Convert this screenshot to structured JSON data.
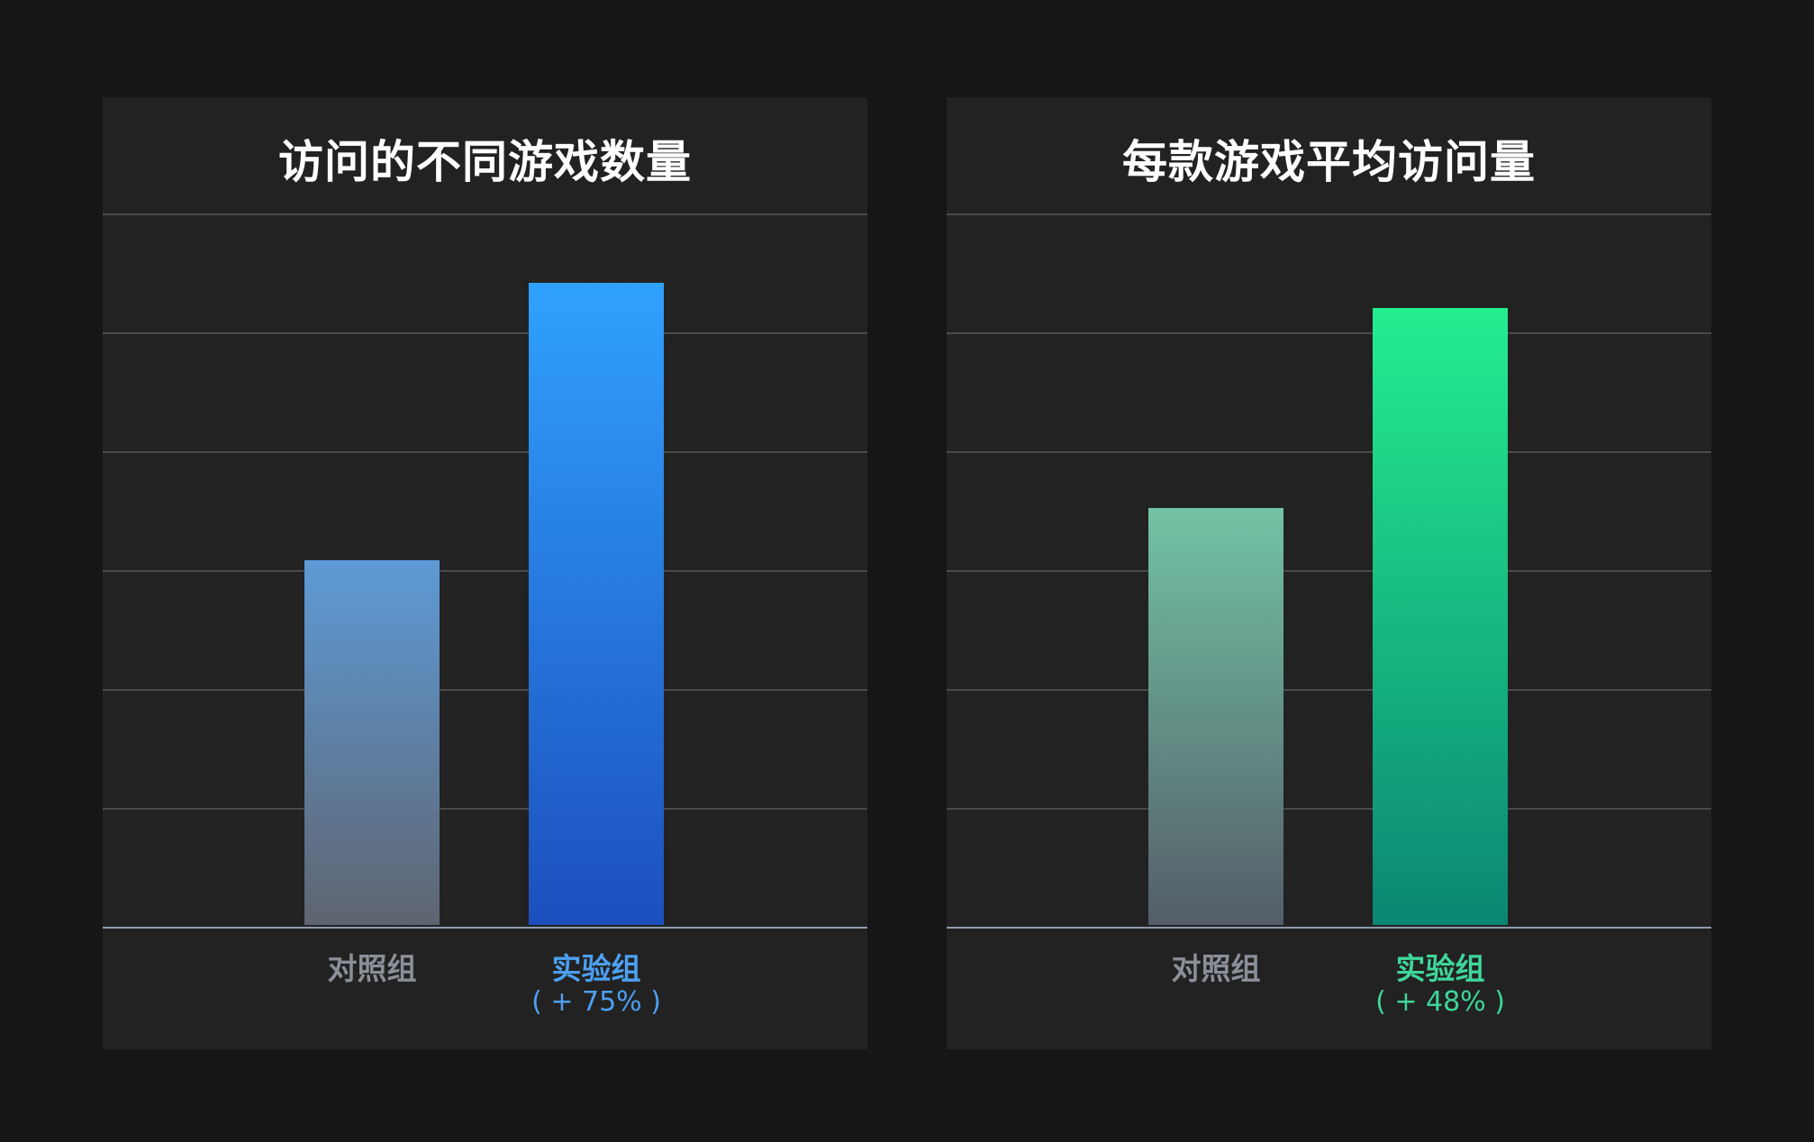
{
  "chart_data": [
    {
      "type": "bar",
      "title": "访问的不同游戏数量",
      "categories": [
        "对照组",
        "实验组"
      ],
      "values": [
        3.07,
        5.4
      ],
      "ylim": [
        0,
        6
      ],
      "grid": true,
      "annotations": [
        null,
        "( + 75% )"
      ],
      "colors": {
        "control_top": "#5e9ad6",
        "control_bottom": "#5f6570",
        "treatment_top": "#30a1ff",
        "treatment_bottom": "#1c4fbd",
        "treatment_label": "#4ca0f2"
      }
    },
    {
      "type": "bar",
      "title": "每款游戏平均访问量",
      "categories": [
        "对照组",
        "实验组"
      ],
      "values": [
        3.51,
        5.19
      ],
      "ylim": [
        0,
        6
      ],
      "grid": true,
      "annotations": [
        null,
        "( + 48% )"
      ],
      "colors": {
        "control_top": "#72c3a4",
        "control_bottom": "#545d68",
        "treatment_top": "#24ee8f",
        "treatment_bottom": "#0b8673",
        "treatment_label": "#3fd69a"
      }
    }
  ]
}
